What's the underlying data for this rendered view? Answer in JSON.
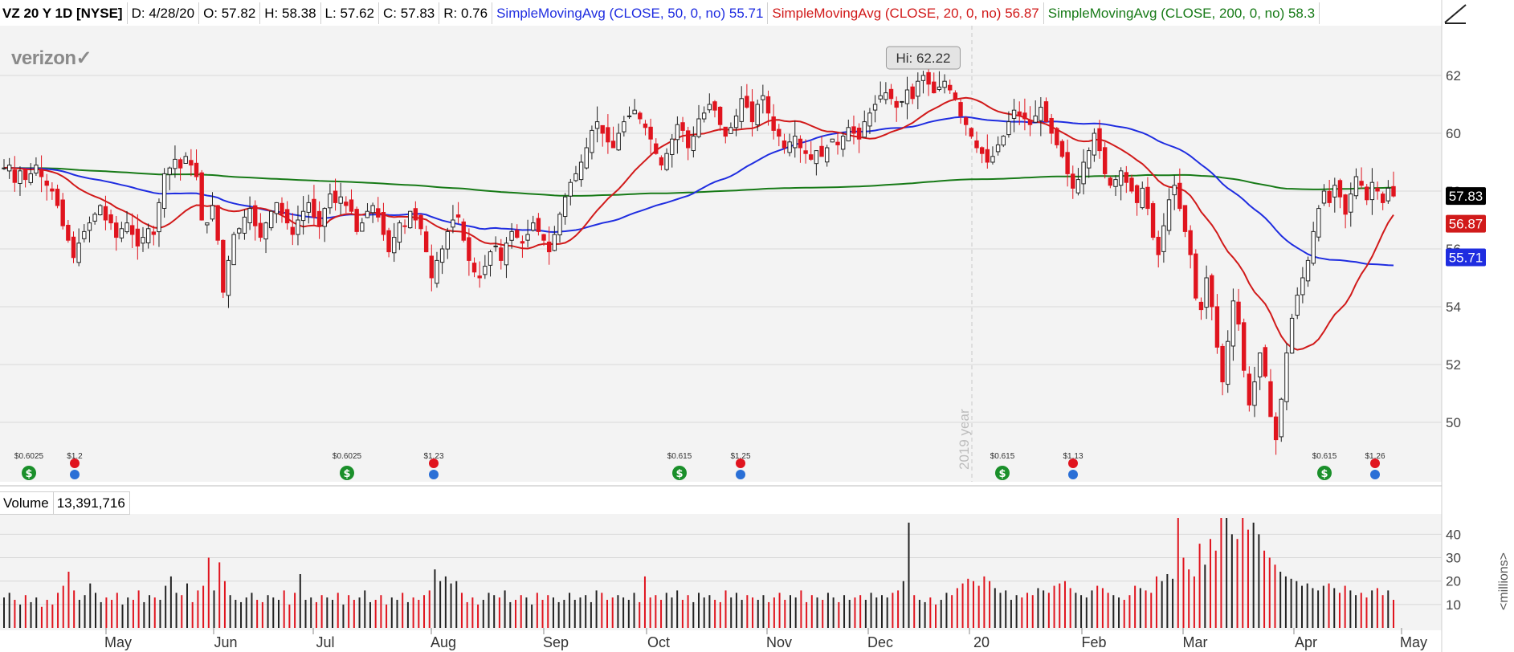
{
  "header": {
    "symbol": "VZ 20 Y 1D [NYSE]",
    "date": "D: 4/28/20",
    "open": "O: 57.82",
    "high": "H: 58.38",
    "low": "L: 57.62",
    "close": "C: 57.83",
    "range": "R: 0.76",
    "sma50_label": "SimpleMovingAvg (CLOSE, 50, 0, no)",
    "sma50_value": "55.71",
    "sma20_label": "SimpleMovingAvg (CLOSE, 20, 0, no)",
    "sma20_value": "56.87",
    "sma200_label": "SimpleMovingAvg (CLOSE, 200, 0, no)",
    "sma200_value": "58.3"
  },
  "logo_text": "verizon✓",
  "volume_header": {
    "label": "Volume",
    "value": "13,391,716"
  },
  "colors": {
    "up": "#222222",
    "down": "#e0141e",
    "sma50": "#1f2de0",
    "sma20": "#d11a1a",
    "sma200": "#177a17",
    "background": "#f3f3f3",
    "grid": "#d8d8d8"
  },
  "chart_data": [
    {
      "type": "candlestick",
      "title": "VZ 20 Y 1D [NYSE]",
      "ylim": [
        48.5,
        63.5
      ],
      "y_ticks": [
        50,
        52,
        54,
        56,
        58,
        60,
        62
      ],
      "x_month_labels": [
        "May",
        "Jun",
        "Jul",
        "Aug",
        "Sep",
        "Oct",
        "Nov",
        "Dec",
        "20",
        "Feb",
        "Mar",
        "Apr",
        "May"
      ],
      "year_marker": "2019 year",
      "hi_annotation": "Hi: 62.22",
      "price_badges": [
        {
          "value": "57.83",
          "color": "#000000"
        },
        {
          "value": "56.87",
          "color": "#d11a1a"
        },
        {
          "value": "55.71",
          "color": "#1f2de0"
        }
      ],
      "closes": [
        58.8,
        58.9,
        58.3,
        58.7,
        58.4,
        58.6,
        58.9,
        58.5,
        58.2,
        58.0,
        57.5,
        56.8,
        56.3,
        55.7,
        56.2,
        56.6,
        56.9,
        57.2,
        57.5,
        57.0,
        56.9,
        56.4,
        56.7,
        56.9,
        56.5,
        56.1,
        56.4,
        56.7,
        56.5,
        57.6,
        58.6,
        58.8,
        59.1,
        58.8,
        59.2,
        58.9,
        58.5,
        57.0,
        56.9,
        57.5,
        56.3,
        54.5,
        55.6,
        56.5,
        56.7,
        57.1,
        57.4,
        56.8,
        56.4,
        56.9,
        57.3,
        57.6,
        57.2,
        56.9,
        56.5,
        57.0,
        57.3,
        57.6,
        57.1,
        56.8,
        57.4,
        57.9,
        57.6,
        57.8,
        57.5,
        57.3,
        56.6,
        56.9,
        57.3,
        57.5,
        57.1,
        56.5,
        55.9,
        56.4,
        56.9,
        56.8,
        57.3,
        57.0,
        56.7,
        55.9,
        55.0,
        55.6,
        56.0,
        56.6,
        57.0,
        57.1,
        56.3,
        55.6,
        55.2,
        55.0,
        55.4,
        55.9,
        56.1,
        55.6,
        56.2,
        56.6,
        56.4,
        56.2,
        56.5,
        56.9,
        56.6,
        56.3,
        55.9,
        56.5,
        57.2,
        57.8,
        58.3,
        58.6,
        59.0,
        59.5,
        60.1,
        60.4,
        60.0,
        59.7,
        59.5,
        60.0,
        60.4,
        60.6,
        60.8,
        60.5,
        60.2,
        59.8,
        59.3,
        58.9,
        59.3,
        59.8,
        60.3,
        60.1,
        59.5,
        59.9,
        60.5,
        60.7,
        61.0,
        60.8,
        60.3,
        59.9,
        60.2,
        60.6,
        61.2,
        60.9,
        60.4,
        61.0,
        61.3,
        60.7,
        60.1,
        59.9,
        59.5,
        59.7,
        59.9,
        59.5,
        59.3,
        59.1,
        59.4,
        59.2,
        59.5,
        59.8,
        59.6,
        59.9,
        60.2,
        60.0,
        59.8,
        60.4,
        60.7,
        61.0,
        61.3,
        61.4,
        61.2,
        60.9,
        61.1,
        61.5,
        61.2,
        61.8,
        62.0,
        61.7,
        61.4,
        61.6,
        61.8,
        61.5,
        61.2,
        60.6,
        60.3,
        59.9,
        59.5,
        59.3,
        59.0,
        59.2,
        59.6,
        59.9,
        60.4,
        60.8,
        60.6,
        60.5,
        60.3,
        60.6,
        60.9,
        60.4,
        60.0,
        59.6,
        59.2,
        58.6,
        58.1,
        58.4,
        59.0,
        59.4,
        60.0,
        59.4,
        58.6,
        58.2,
        58.4,
        58.7,
        58.3,
        58.0,
        57.6,
        58.1,
        57.4,
        56.4,
        55.8,
        56.8,
        57.7,
        58.2,
        57.4,
        56.6,
        55.8,
        54.3,
        53.9,
        55.0,
        54.0,
        52.6,
        51.4,
        52.8,
        54.2,
        53.4,
        51.8,
        50.6,
        51.4,
        52.4,
        51.6,
        50.2,
        49.4,
        50.8,
        52.4,
        53.6,
        54.4,
        55.0,
        55.6,
        56.6,
        57.4,
        58.0,
        57.6,
        58.2,
        57.8,
        57.2,
        57.9,
        58.5,
        58.2,
        57.7,
        58.3,
        58.0,
        57.6,
        58.1,
        57.83
      ],
      "sma20_endpoints": {
        "last": 56.87
      },
      "sma50_endpoints": {
        "last": 55.71
      },
      "sma200_endpoints": {
        "last": 58.3
      },
      "event_markers": [
        {
          "label": "$0.6025",
          "kind": "dividend"
        },
        {
          "label": "$1.2",
          "kind": "earnings"
        },
        {
          "label": "$0.6025",
          "kind": "dividend"
        },
        {
          "label": "$1.23",
          "kind": "earnings"
        },
        {
          "label": "$0.615",
          "kind": "dividend"
        },
        {
          "label": "$1.25",
          "kind": "earnings"
        },
        {
          "label": "$0.615",
          "kind": "dividend"
        },
        {
          "label": "$1.13",
          "kind": "earnings"
        },
        {
          "label": "$0.615",
          "kind": "dividend"
        },
        {
          "label": "$1.26",
          "kind": "earnings"
        }
      ]
    },
    {
      "type": "bar",
      "title": "Volume",
      "ylabel": "<millions>",
      "ylim": [
        0,
        47
      ],
      "y_ticks": [
        10,
        20,
        30,
        40
      ],
      "volumes": [
        13,
        15,
        12,
        10,
        14,
        11,
        13,
        9,
        12,
        10,
        15,
        18,
        24,
        16,
        12,
        14,
        19,
        15,
        11,
        13,
        12,
        15,
        10,
        13,
        12,
        16,
        11,
        14,
        13,
        12,
        18,
        22,
        15,
        14,
        19,
        11,
        16,
        18,
        30,
        16,
        28,
        20,
        14,
        12,
        11,
        13,
        15,
        12,
        11,
        14,
        13,
        12,
        16,
        10,
        15,
        23,
        12,
        13,
        11,
        14,
        13,
        12,
        15,
        10,
        14,
        12,
        13,
        16,
        11,
        12,
        14,
        10,
        13,
        12,
        15,
        11,
        13,
        12,
        14,
        16,
        25,
        20,
        22,
        19,
        20,
        15,
        11,
        13,
        10,
        12,
        15,
        14,
        13,
        16,
        11,
        12,
        14,
        13,
        10,
        15,
        12,
        14,
        13,
        11,
        12,
        15,
        12,
        13,
        14,
        11,
        16,
        15,
        12,
        13,
        14,
        13,
        12,
        15,
        11,
        22,
        13,
        14,
        12,
        15,
        13,
        16,
        12,
        14,
        11,
        15,
        13,
        14,
        12,
        11,
        16,
        13,
        15,
        12,
        14,
        13,
        12,
        14,
        11,
        13,
        15,
        12,
        14,
        13,
        16,
        11,
        14,
        13,
        12,
        15,
        13,
        11,
        14,
        12,
        13,
        14,
        12,
        15,
        13,
        14,
        13,
        15,
        16,
        20,
        45,
        14,
        12,
        11,
        13,
        10,
        12,
        15,
        14,
        17,
        19,
        21,
        20,
        18,
        22,
        20,
        17,
        15,
        16,
        12,
        14,
        13,
        15,
        14,
        17,
        16,
        15,
        18,
        19,
        20,
        17,
        15,
        14,
        13,
        16,
        18,
        17,
        15,
        14,
        13,
        12,
        14,
        18,
        17,
        16,
        15,
        22,
        20,
        23,
        21,
        47,
        30,
        25,
        22,
        36,
        27,
        38,
        33,
        47,
        47,
        40,
        38,
        47,
        42,
        45,
        40,
        33,
        30,
        27,
        24,
        22,
        21,
        20,
        18,
        19,
        17,
        16,
        18,
        19,
        17,
        15,
        18,
        16,
        14,
        15,
        13,
        16,
        17,
        14,
        16,
        12
      ]
    }
  ]
}
